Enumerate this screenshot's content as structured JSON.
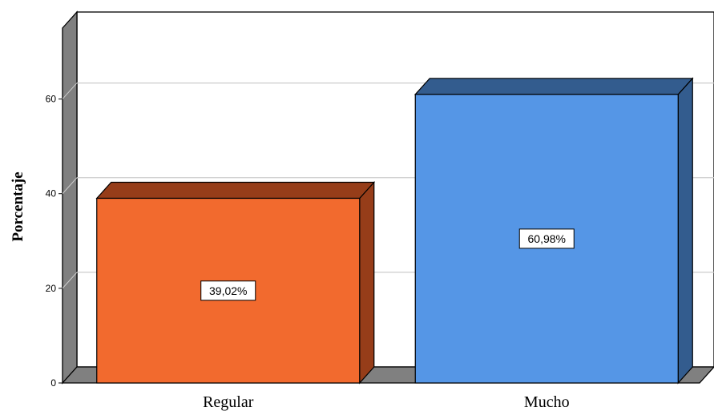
{
  "chart_data": {
    "type": "bar",
    "title": "",
    "xlabel": "",
    "ylabel": "Porcentaje",
    "ylim": [
      0,
      75
    ],
    "yticks": [
      0,
      20,
      40,
      60
    ],
    "grid": true,
    "categories": [
      "Regular",
      "Mucho"
    ],
    "values": [
      39.02,
      60.98
    ],
    "data_labels": [
      "39,02%",
      "60,98%"
    ],
    "colors": {
      "Regular": {
        "front": "#f26a2e",
        "top": "#963d19",
        "side": "#963d19"
      },
      "Mucho": {
        "front": "#5596e6",
        "top": "#335c8e",
        "side": "#335c8e"
      }
    },
    "wall_color": "#808080",
    "grid_color": "#cccccc"
  }
}
